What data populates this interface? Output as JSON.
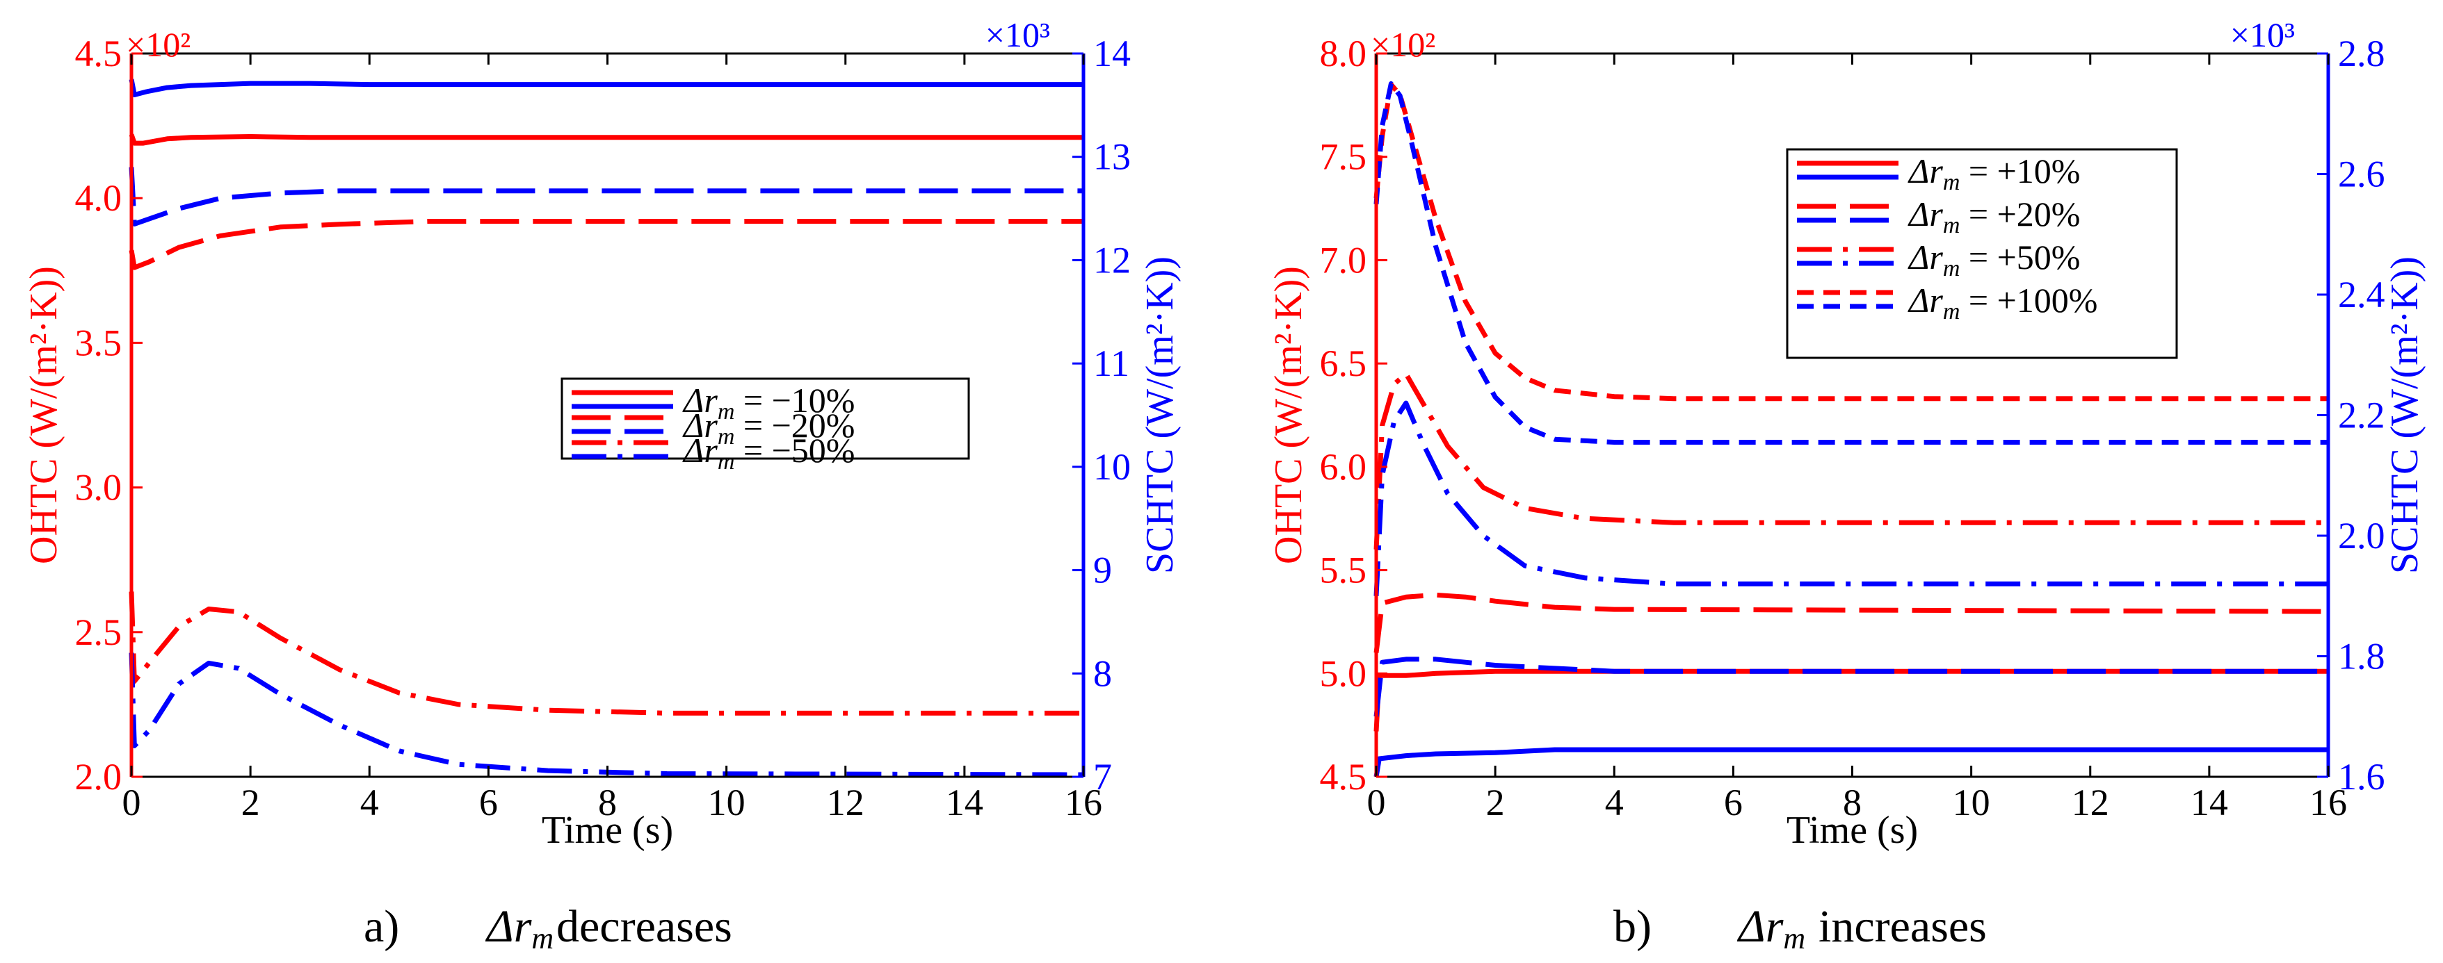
{
  "colors": {
    "ohtc": "#ff0000",
    "schtc": "#0000ff",
    "axis": "#000000"
  },
  "chart_data": [
    {
      "id": "a",
      "type": "line",
      "caption_prefix": "a)",
      "caption_symbol": "Δr",
      "caption_sub": "m",
      "caption_suffix": "decreases",
      "xlabel": "Time (s)",
      "ylabel_left": "OHTC (W/(m²·K))",
      "ylabel_right": "SCHTC (W/(m²·K))",
      "left_multiplier": "×10²",
      "right_multiplier": "×10³",
      "xlim": [
        0,
        16
      ],
      "ylim_left": [
        2.0,
        4.5
      ],
      "ylim_right": [
        7,
        14
      ],
      "xticks": [
        0,
        2,
        4,
        6,
        8,
        10,
        12,
        14,
        16
      ],
      "yticks_left": [
        "2.0",
        "2.5",
        "3.0",
        "3.5",
        "4.0",
        "4.5"
      ],
      "yticks_right": [
        "7",
        "8",
        "9",
        "10",
        "11",
        "12",
        "13",
        "14"
      ],
      "grid": false,
      "legend_position": "center-right",
      "series": [
        {
          "name": "Δr_m = −10%",
          "legend_label": "−10%",
          "style": "solid",
          "ohtc": [
            [
              0,
              4.22
            ],
            [
              0.05,
              4.19
            ],
            [
              0.2,
              4.19
            ],
            [
              0.6,
              4.205
            ],
            [
              1,
              4.21
            ],
            [
              2,
              4.213
            ],
            [
              3,
              4.21
            ],
            [
              4,
              4.21
            ],
            [
              8,
              4.21
            ],
            [
              16,
              4.21
            ]
          ],
          "schtc": [
            [
              0,
              13.75
            ],
            [
              0.05,
              13.6
            ],
            [
              0.25,
              13.63
            ],
            [
              0.6,
              13.67
            ],
            [
              1,
              13.69
            ],
            [
              2,
              13.71
            ],
            [
              3,
              13.71
            ],
            [
              4,
              13.7
            ],
            [
              8,
              13.7
            ],
            [
              16,
              13.7
            ]
          ]
        },
        {
          "name": "Δr_m = −20%",
          "legend_label": "−20%",
          "style": "dash",
          "ohtc": [
            [
              0,
              3.82
            ],
            [
              0.05,
              3.76
            ],
            [
              0.3,
              3.78
            ],
            [
              0.8,
              3.83
            ],
            [
              1.5,
              3.87
            ],
            [
              2.5,
              3.9
            ],
            [
              3.5,
              3.91
            ],
            [
              5,
              3.92
            ],
            [
              8,
              3.92
            ],
            [
              16,
              3.92
            ]
          ],
          "schtc": [
            [
              0,
              12.9
            ],
            [
              0.05,
              12.35
            ],
            [
              0.3,
              12.4
            ],
            [
              0.8,
              12.5
            ],
            [
              1.5,
              12.6
            ],
            [
              2.5,
              12.65
            ],
            [
              3.5,
              12.67
            ],
            [
              5,
              12.67
            ],
            [
              8,
              12.67
            ],
            [
              16,
              12.67
            ]
          ]
        },
        {
          "name": "Δr_m = −50%",
          "legend_label": "−50%",
          "style": "dashdot",
          "ohtc": [
            [
              0,
              2.64
            ],
            [
              0.05,
              2.33
            ],
            [
              0.4,
              2.42
            ],
            [
              0.8,
              2.52
            ],
            [
              1.3,
              2.58
            ],
            [
              1.8,
              2.57
            ],
            [
              2.5,
              2.48
            ],
            [
              3.5,
              2.37
            ],
            [
              4.5,
              2.29
            ],
            [
              5.5,
              2.25
            ],
            [
              7,
              2.23
            ],
            [
              9,
              2.22
            ],
            [
              16,
              2.22
            ]
          ],
          "schtc": [
            [
              0,
              8.2
            ],
            [
              0.05,
              7.3
            ],
            [
              0.3,
              7.45
            ],
            [
              0.8,
              7.9
            ],
            [
              1.3,
              8.1
            ],
            [
              1.8,
              8.05
            ],
            [
              2.5,
              7.8
            ],
            [
              3.5,
              7.5
            ],
            [
              4.5,
              7.25
            ],
            [
              5.5,
              7.12
            ],
            [
              7,
              7.06
            ],
            [
              9,
              7.03
            ],
            [
              16,
              7.02
            ]
          ]
        }
      ]
    },
    {
      "id": "b",
      "type": "line",
      "caption_prefix": "b)",
      "caption_symbol": "Δr",
      "caption_sub": "m",
      "caption_suffix": "increases",
      "xlabel": "Time (s)",
      "ylabel_left": "OHTC (W/(m²·K))",
      "ylabel_right": "SCHTC (W/(m²·K))",
      "left_multiplier": "×10²",
      "right_multiplier": "×10³",
      "xlim": [
        0,
        16
      ],
      "ylim_left": [
        4.5,
        8.0
      ],
      "ylim_right": [
        1.6,
        2.8
      ],
      "xticks": [
        0,
        2,
        4,
        6,
        8,
        10,
        12,
        14,
        16
      ],
      "yticks_left": [
        "4.5",
        "5.0",
        "5.5",
        "6.0",
        "6.5",
        "7.0",
        "7.5",
        "8.0"
      ],
      "yticks_right": [
        "1.6",
        "1.8",
        "2.0",
        "2.2",
        "2.4",
        "2.6",
        "2.8"
      ],
      "grid": false,
      "legend_position": "top-right",
      "series": [
        {
          "name": "Δr_m = +10%",
          "legend_label": "+10%",
          "style": "solid",
          "ohtc": [
            [
              0,
              4.72
            ],
            [
              0.05,
              4.99
            ],
            [
              0.5,
              4.99
            ],
            [
              1,
              5.0
            ],
            [
              2,
              5.01
            ],
            [
              3,
              5.01
            ],
            [
              16,
              5.01
            ]
          ],
          "schtc": [
            [
              0,
              1.6
            ],
            [
              0.05,
              1.63
            ],
            [
              0.5,
              1.635
            ],
            [
              1,
              1.638
            ],
            [
              2,
              1.64
            ],
            [
              3,
              1.645
            ],
            [
              16,
              1.645
            ]
          ]
        },
        {
          "name": "Δr_m = +20%",
          "legend_label": "+20%",
          "style": "dash",
          "ohtc": [
            [
              0,
              5.1
            ],
            [
              0.1,
              5.34
            ],
            [
              0.5,
              5.37
            ],
            [
              1,
              5.38
            ],
            [
              1.5,
              5.37
            ],
            [
              2,
              5.35
            ],
            [
              3,
              5.32
            ],
            [
              4,
              5.31
            ],
            [
              16,
              5.3
            ]
          ],
          "schtc": [
            [
              0,
              1.7
            ],
            [
              0.1,
              1.79
            ],
            [
              0.5,
              1.795
            ],
            [
              1,
              1.795
            ],
            [
              1.5,
              1.79
            ],
            [
              2,
              1.785
            ],
            [
              3,
              1.78
            ],
            [
              4,
              1.775
            ],
            [
              16,
              1.775
            ]
          ]
        },
        {
          "name": "Δr_m = +50%",
          "legend_label": "+50%",
          "style": "dashdot",
          "ohtc": [
            [
              0,
              5.6
            ],
            [
              0.1,
              6.2
            ],
            [
              0.3,
              6.4
            ],
            [
              0.5,
              6.45
            ],
            [
              0.8,
              6.3
            ],
            [
              1.2,
              6.1
            ],
            [
              1.8,
              5.9
            ],
            [
              2.5,
              5.8
            ],
            [
              3.5,
              5.75
            ],
            [
              5,
              5.73
            ],
            [
              16,
              5.73
            ]
          ],
          "schtc": [
            [
              0,
              1.9
            ],
            [
              0.1,
              2.1
            ],
            [
              0.3,
              2.19
            ],
            [
              0.5,
              2.22
            ],
            [
              0.8,
              2.15
            ],
            [
              1.2,
              2.07
            ],
            [
              1.8,
              2.0
            ],
            [
              2.5,
              1.95
            ],
            [
              3.5,
              1.93
            ],
            [
              5,
              1.92
            ],
            [
              16,
              1.92
            ]
          ]
        },
        {
          "name": "Δr_m = +100%",
          "legend_label": "+100%",
          "style": "shortdash",
          "ohtc": [
            [
              0,
              7.3
            ],
            [
              0.1,
              7.6
            ],
            [
              0.25,
              7.85
            ],
            [
              0.4,
              7.8
            ],
            [
              0.6,
              7.6
            ],
            [
              1,
              7.2
            ],
            [
              1.5,
              6.8
            ],
            [
              2,
              6.55
            ],
            [
              2.5,
              6.43
            ],
            [
              3,
              6.37
            ],
            [
              4,
              6.34
            ],
            [
              5,
              6.33
            ],
            [
              16,
              6.33
            ]
          ],
          "schtc": [
            [
              0,
              2.55
            ],
            [
              0.1,
              2.68
            ],
            [
              0.25,
              2.75
            ],
            [
              0.4,
              2.73
            ],
            [
              0.6,
              2.65
            ],
            [
              1,
              2.48
            ],
            [
              1.5,
              2.32
            ],
            [
              2,
              2.23
            ],
            [
              2.5,
              2.18
            ],
            [
              3,
              2.16
            ],
            [
              4,
              2.155
            ],
            [
              16,
              2.155
            ]
          ]
        }
      ]
    }
  ]
}
